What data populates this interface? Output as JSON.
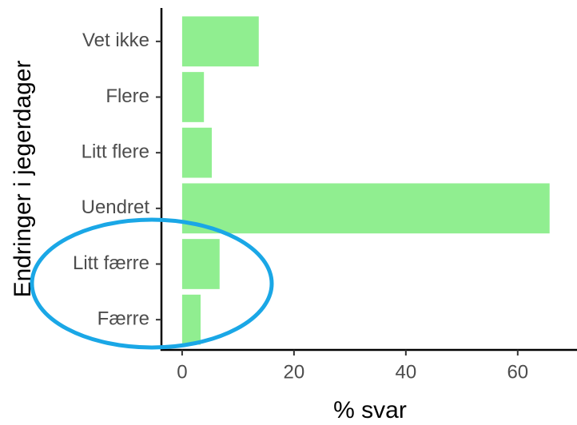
{
  "chart_data": {
    "type": "bar",
    "orientation": "horizontal",
    "x_label": "% svar",
    "y_label": "Endringer i jegerdager",
    "categories": [
      "Vet ikke",
      "Flere",
      "Litt flere",
      "Uendret",
      "Litt færre",
      "Færre"
    ],
    "values": [
      13.7,
      3.9,
      5.3,
      65.7,
      6.7,
      3.3
    ],
    "color": "#90ee90",
    "xlim": [
      -3.7,
      70.6
    ],
    "xticks": [
      0,
      20,
      40,
      60
    ],
    "grid": false
  }
}
